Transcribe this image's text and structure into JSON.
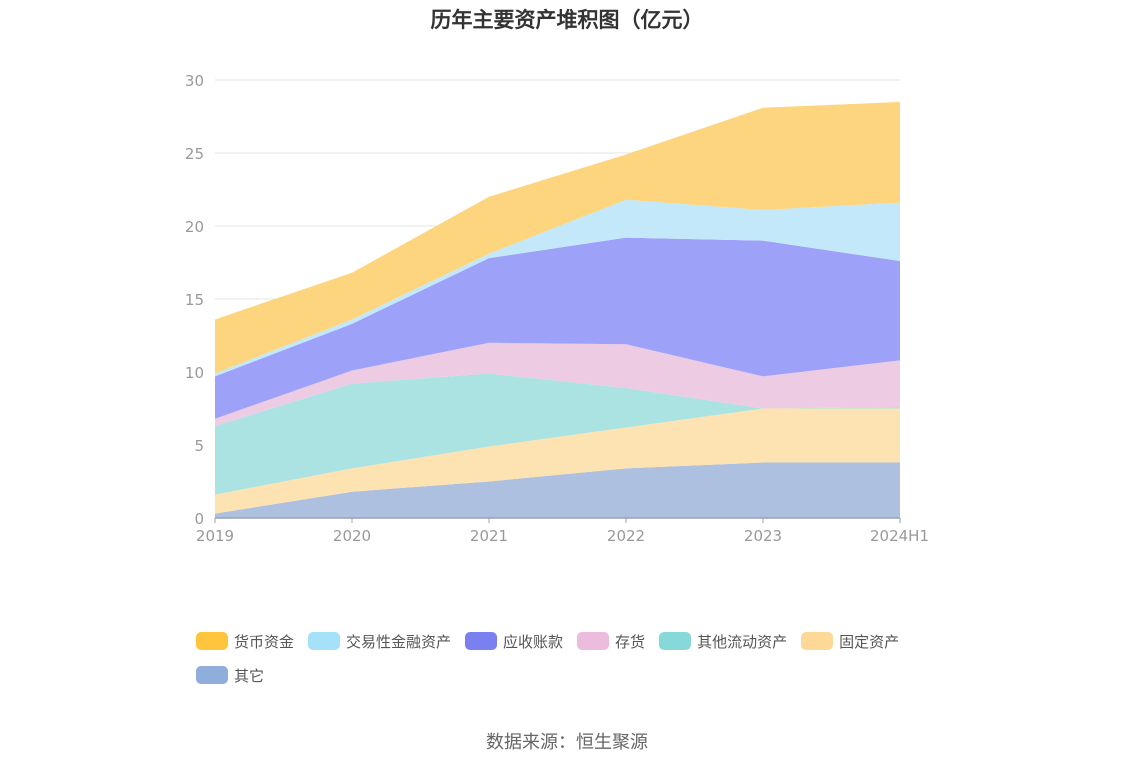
{
  "chart_data": {
    "type": "area",
    "stacked": true,
    "title": "历年主要资产堆积图（亿元）",
    "categories": [
      "2019",
      "2020",
      "2021",
      "2022",
      "2023",
      "2024H1"
    ],
    "ylim": [
      0,
      30
    ],
    "yticks": [
      0,
      5,
      10,
      15,
      20,
      25,
      30
    ],
    "grid": true,
    "legend_position": "bottom",
    "series": [
      {
        "name": "其它",
        "color": "#aec0e0",
        "values": [
          0.3,
          1.8,
          2.5,
          3.4,
          3.8,
          3.8
        ]
      },
      {
        "name": "固定资产",
        "color": "#fde2b2",
        "values": [
          1.3,
          1.6,
          2.4,
          2.8,
          3.7,
          3.7
        ]
      },
      {
        "name": "其他流动资产",
        "color": "#abe3e3",
        "values": [
          4.7,
          5.8,
          5.0,
          2.7,
          0.0,
          0.1
        ]
      },
      {
        "name": "存货",
        "color": "#edcbe3",
        "values": [
          0.5,
          0.9,
          2.1,
          3.0,
          2.2,
          3.2
        ]
      },
      {
        "name": "应收账款",
        "color": "#9da2f8",
        "values": [
          2.9,
          3.2,
          5.8,
          7.3,
          9.3,
          6.8
        ]
      },
      {
        "name": "交易性金融资产",
        "color": "#c3e8f9",
        "values": [
          0.2,
          0.3,
          0.3,
          2.6,
          2.1,
          4.0
        ]
      },
      {
        "name": "货币资金",
        "color": "#fdd57e",
        "values": [
          3.7,
          3.2,
          3.9,
          3.1,
          7.0,
          6.9
        ]
      }
    ]
  },
  "legend": [
    {
      "label": "货币资金",
      "color": "#ffc53d"
    },
    {
      "label": "交易性金融资产",
      "color": "#a6e1fa"
    },
    {
      "label": "应收账款",
      "color": "#7b80f0"
    },
    {
      "label": "存货",
      "color": "#ebbcdc"
    },
    {
      "label": "其他流动资产",
      "color": "#87d8d9"
    },
    {
      "label": "固定资产",
      "color": "#fdd896"
    },
    {
      "label": "其它",
      "color": "#8faedc"
    }
  ],
  "source": "数据来源：恒生聚源"
}
